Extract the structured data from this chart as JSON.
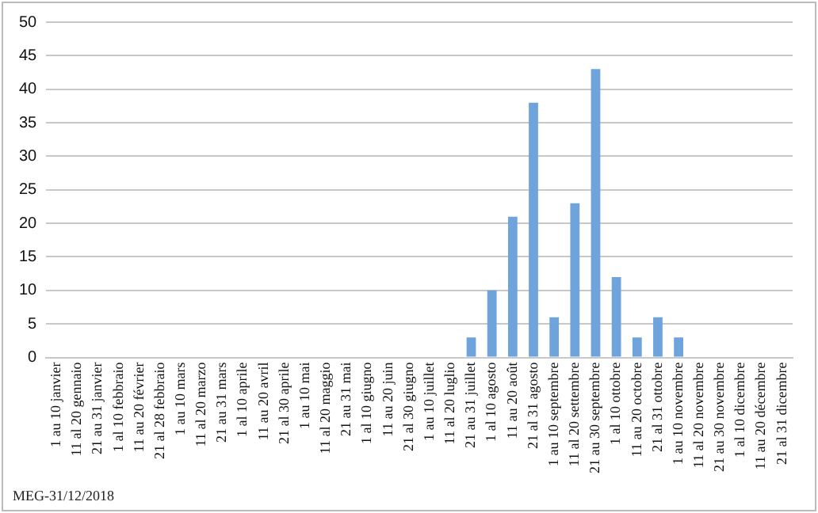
{
  "chart_data": {
    "type": "bar",
    "categories": [
      "1 au 10 janvier",
      "11 al 20 gennaio",
      "21 au 31 janvier",
      "1 al 10 febbraio",
      "11 au 20 février",
      "21 al 28 febbraio",
      "1 au 10 mars",
      "11 al 20 marzo",
      "21 au 31 mars",
      "1 al 10 aprile",
      "11 au 20 avril",
      "21 al 30 aprile",
      "1 au 10 mai",
      "11 al 20 maggio",
      "21 au 31 mai",
      "1 al 10 giugno",
      "11 au 20 juin",
      "21 al 30 giugno",
      "1 au 10 juillet",
      "11 al 20 luglio",
      "21 au 31 juillet",
      "1 al 10 agosto",
      "11 au 20 août",
      "21 al 31 agosto",
      "1 au 10 septembre",
      "11 al 20 settembre",
      "21 au 30 septembre",
      "1 al 10 ottobre",
      "11 au 20 octobre",
      "21 al 31 ottobre",
      "1 au 10 novembre",
      "11 al 20 novembre",
      "21 au 30 novembre",
      "1 al 10 dicembre",
      "11 au 20 décembre",
      "21 al 31 dicembre"
    ],
    "values": [
      0,
      0,
      0,
      0,
      0,
      0,
      0,
      0,
      0,
      0,
      0,
      0,
      0,
      0,
      0,
      0,
      0,
      0,
      0,
      0,
      3,
      10,
      21,
      38,
      6,
      23,
      43,
      12,
      3,
      6,
      3,
      0,
      0,
      0,
      0,
      0
    ],
    "color": "#6fa3dc",
    "ylim": [
      0,
      50
    ],
    "yticks": [
      0,
      5,
      10,
      15,
      20,
      25,
      30,
      35,
      40,
      45,
      50
    ],
    "grid": "y",
    "annotations": [
      "MEG-31/12/2018"
    ]
  }
}
